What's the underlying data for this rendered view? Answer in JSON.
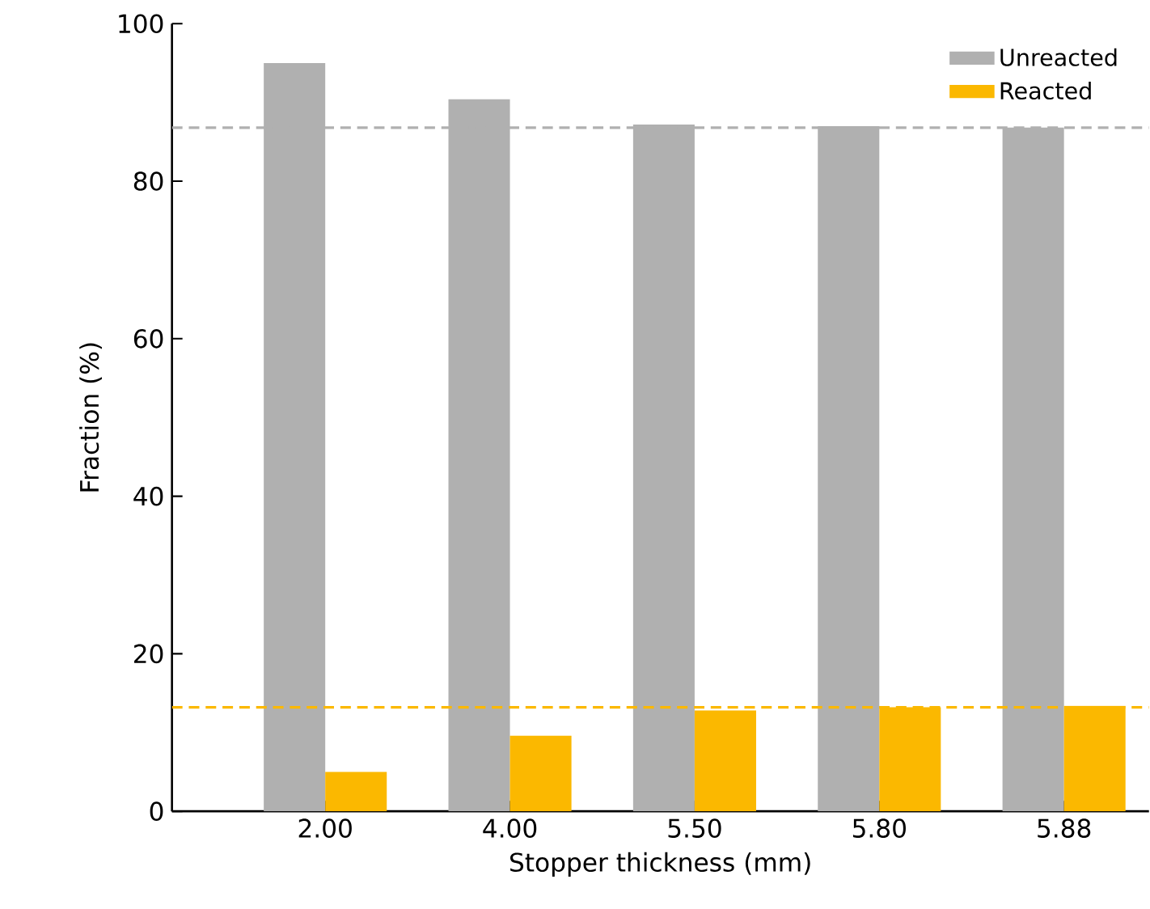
{
  "chart_data": {
    "type": "bar",
    "xlabel": "Stopper thickness (mm)",
    "ylabel": "Fraction (%)",
    "categories": [
      "2.00",
      "4.00",
      "5.50",
      "5.80",
      "5.88"
    ],
    "series": [
      {
        "name": "Unreacted",
        "color": "#b0b0b0",
        "values": [
          95.0,
          90.4,
          87.2,
          87.0,
          86.8
        ]
      },
      {
        "name": "Reacted",
        "color": "#fbb800",
        "values": [
          5.0,
          9.6,
          12.8,
          13.2,
          13.4
        ]
      }
    ],
    "ylim": [
      0,
      100
    ],
    "yticks": [
      0,
      20,
      40,
      60,
      80,
      100
    ],
    "ref_lines": [
      {
        "axis": "y",
        "value": 86.8,
        "color": "#b0b0b0",
        "line_style": "dashed"
      },
      {
        "axis": "y",
        "value": 13.2,
        "color": "#fbb800",
        "line_style": "dashed"
      }
    ],
    "legend": "top right",
    "grid": false
  }
}
